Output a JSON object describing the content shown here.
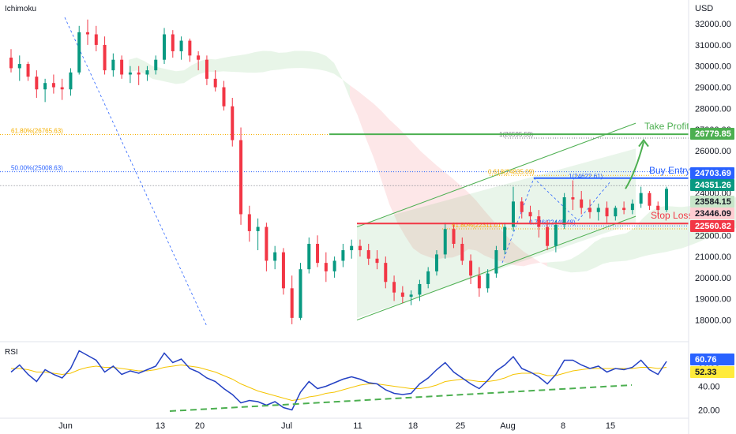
{
  "chart_data": {
    "type": "candlestick",
    "indicator_label": "Ichimoku",
    "currency": "USD",
    "price_axis": {
      "ticks": [
        "32000.00",
        "31000.00",
        "30000.00",
        "29000.00",
        "28000.00",
        "27000.00",
        "26000.00",
        "25000.00",
        "24000.00",
        "23000.00",
        "22000.00",
        "21000.00",
        "20000.00",
        "19000.00",
        "18000.00"
      ],
      "tick_values": [
        32000,
        31000,
        30000,
        29000,
        28000,
        27000,
        26000,
        25000,
        24000,
        23000,
        22000,
        21000,
        20000,
        19000,
        18000
      ],
      "range": [
        17200,
        32750
      ]
    },
    "time_axis": {
      "labels": [
        "Jun",
        "13",
        "20",
        "Jul",
        "11",
        "18",
        "25",
        "Aug",
        "8",
        "15"
      ],
      "label_index": [
        0,
        12,
        17,
        28,
        37,
        44,
        50,
        56,
        63,
        69
      ]
    },
    "price_badges": [
      {
        "value": "26779.85",
        "color": "#4caf50"
      },
      {
        "value": "24703.69",
        "color": "#2962ff"
      },
      {
        "value": "24351.26",
        "color": "#089981"
      },
      {
        "value": "23584.15",
        "color": "#c8e6c9"
      },
      {
        "value": "23446.09",
        "color": "#ffcdd2"
      },
      {
        "value": "22560.82",
        "color": "#f23645"
      }
    ],
    "annotations": {
      "take_profit": {
        "text": "Take Profit",
        "price": 26779.85,
        "color": "#4caf50"
      },
      "buy_entry": {
        "text": "Buy Entry",
        "price": 24703.69,
        "color": "#2962ff"
      },
      "stop_loss": {
        "text": "Stop Loss",
        "price": 22560.82,
        "color": "#f23645"
      }
    },
    "fib_labels": [
      {
        "text": "61.80%(26765.63)",
        "price": 26765.63,
        "color": "#f5b000"
      },
      {
        "text": "50.00%(25008.63)",
        "price": 25008.63,
        "color": "#2962ff"
      },
      {
        "text": "1(26595.59)",
        "price": 26595.59,
        "color": "#787b86"
      },
      {
        "text": "0.618(24835.09)",
        "price": 24835.09,
        "color": "#f5b000"
      },
      {
        "text": "1(24622.61)",
        "price": 24622.61,
        "color": "#2962ff"
      },
      {
        "text": "0.786(22448.48)",
        "price": 22448.48,
        "color": "#2962ff"
      },
      {
        "text": "61.80%(22311.01)",
        "price": 22311.01,
        "color": "#f5b000"
      }
    ],
    "candles": [
      [
        0,
        30400,
        30800,
        29700,
        29900
      ],
      [
        1,
        29900,
        30500,
        29300,
        30100
      ],
      [
        2,
        30100,
        30200,
        29300,
        29500
      ],
      [
        3,
        29500,
        29800,
        28500,
        28900
      ],
      [
        4,
        28900,
        29400,
        28300,
        29200
      ],
      [
        5,
        29200,
        29600,
        28700,
        29000
      ],
      [
        6,
        29000,
        29400,
        28400,
        28900
      ],
      [
        7,
        28900,
        29900,
        28600,
        29700
      ],
      [
        8,
        29700,
        31900,
        29600,
        31600
      ],
      [
        9,
        31600,
        32200,
        31000,
        31500
      ],
      [
        10,
        31500,
        31900,
        30700,
        31000
      ],
      [
        11,
        31000,
        31400,
        29600,
        29800
      ],
      [
        12,
        29800,
        30600,
        29500,
        30300
      ],
      [
        13,
        30300,
        30500,
        29400,
        29600
      ],
      [
        14,
        29600,
        30000,
        29200,
        29700
      ],
      [
        15,
        29700,
        30000,
        29100,
        29600
      ],
      [
        16,
        29600,
        30000,
        29300,
        29800
      ],
      [
        17,
        29800,
        30500,
        29600,
        30300
      ],
      [
        18,
        30300,
        31800,
        30100,
        31500
      ],
      [
        19,
        31500,
        31700,
        30400,
        30700
      ],
      [
        20,
        30700,
        31400,
        30300,
        31200
      ],
      [
        21,
        31200,
        31300,
        30200,
        30500
      ],
      [
        22,
        30500,
        30700,
        29800,
        30300
      ],
      [
        23,
        30300,
        30500,
        29100,
        29400
      ],
      [
        24,
        29400,
        29800,
        28800,
        29000
      ],
      [
        25,
        29000,
        29300,
        27900,
        28100
      ],
      [
        26,
        28100,
        28500,
        26200,
        26500
      ],
      [
        27,
        26500,
        27100,
        22500,
        23000
      ],
      [
        28,
        23000,
        23400,
        21700,
        22200
      ],
      [
        29,
        22200,
        22800,
        21300,
        22400
      ],
      [
        30,
        22400,
        22600,
        20300,
        20800
      ],
      [
        31,
        20800,
        21500,
        20400,
        21200
      ],
      [
        32,
        21200,
        21400,
        19200,
        19500
      ],
      [
        33,
        19500,
        20100,
        17800,
        18100
      ],
      [
        34,
        18100,
        20700,
        18000,
        20400
      ],
      [
        35,
        20400,
        21900,
        20200,
        21600
      ],
      [
        36,
        21600,
        22000,
        20500,
        20700
      ],
      [
        37,
        20700,
        21200,
        19800,
        20300
      ],
      [
        38,
        20300,
        21000,
        20000,
        20800
      ],
      [
        39,
        20800,
        21600,
        20500,
        21300
      ],
      [
        40,
        21300,
        21800,
        20900,
        21500
      ],
      [
        41,
        21500,
        21800,
        21000,
        21300
      ],
      [
        42,
        21300,
        21600,
        20600,
        20900
      ],
      [
        43,
        20900,
        21300,
        20400,
        20700
      ],
      [
        44,
        20700,
        21000,
        19500,
        19800
      ],
      [
        45,
        19800,
        20100,
        18900,
        19300
      ],
      [
        46,
        19300,
        19600,
        18800,
        19100
      ],
      [
        47,
        19100,
        19400,
        18700,
        19200
      ],
      [
        48,
        19200,
        19900,
        18900,
        19700
      ],
      [
        49,
        19700,
        20500,
        19500,
        20300
      ],
      [
        50,
        20300,
        21300,
        20100,
        21100
      ],
      [
        51,
        21100,
        22600,
        20900,
        22300
      ],
      [
        52,
        22300,
        22500,
        21400,
        21600
      ],
      [
        53,
        21600,
        21900,
        20600,
        20800
      ],
      [
        54,
        20800,
        21100,
        19700,
        20100
      ],
      [
        55,
        20100,
        20500,
        19100,
        19500
      ],
      [
        56,
        19500,
        20400,
        19300,
        20200
      ],
      [
        57,
        20200,
        21500,
        20000,
        21300
      ],
      [
        58,
        21300,
        22600,
        21100,
        22400
      ],
      [
        59,
        22400,
        24300,
        22200,
        23600
      ],
      [
        60,
        23600,
        23800,
        22800,
        23100
      ],
      [
        61,
        23100,
        23400,
        22600,
        22900
      ],
      [
        62,
        22900,
        23200,
        21900,
        22400
      ],
      [
        63,
        22400,
        22700,
        21300,
        21500
      ],
      [
        64,
        21500,
        22700,
        21200,
        22500
      ],
      [
        65,
        22500,
        24000,
        22300,
        23800
      ],
      [
        66,
        23800,
        24600,
        23200,
        23700
      ],
      [
        67,
        23700,
        24100,
        23000,
        23300
      ],
      [
        68,
        23300,
        23700,
        22800,
        23100
      ],
      [
        69,
        23100,
        23500,
        22700,
        23300
      ],
      [
        70,
        23300,
        23600,
        22600,
        22900
      ],
      [
        71,
        22900,
        23400,
        22700,
        23300
      ],
      [
        72,
        23300,
        23600,
        23000,
        23200
      ],
      [
        73,
        23200,
        23700,
        23000,
        23500
      ],
      [
        74,
        23500,
        24300,
        23300,
        24000
      ],
      [
        75,
        24000,
        24100,
        23200,
        23400
      ],
      [
        76,
        23400,
        23600,
        22900,
        23200
      ],
      [
        77,
        23200,
        24300,
        23100,
        24200
      ]
    ],
    "rsi": {
      "label": "RSI",
      "ticks": [
        "60.00",
        "40.00",
        "20.00"
      ],
      "tick_values": [
        60,
        40,
        20
      ],
      "range": [
        15,
        75
      ],
      "value_badges": [
        {
          "value": "60.76",
          "color": "#2962ff"
        },
        {
          "value": "52.33",
          "color": "#ffeb3b"
        }
      ],
      "values": [
        52,
        58,
        50,
        44,
        54,
        50,
        47,
        55,
        70,
        66,
        62,
        52,
        57,
        50,
        53,
        51,
        54,
        57,
        68,
        60,
        63,
        55,
        52,
        47,
        44,
        38,
        33,
        26,
        28,
        27,
        24,
        27,
        22,
        20,
        35,
        44,
        38,
        40,
        43,
        46,
        48,
        46,
        43,
        42,
        37,
        34,
        33,
        34,
        42,
        47,
        54,
        60,
        52,
        47,
        42,
        38,
        45,
        53,
        58,
        65,
        55,
        52,
        48,
        42,
        50,
        62,
        62,
        58,
        55,
        57,
        52,
        55,
        54,
        56,
        62,
        54,
        50,
        61
      ],
      "signal": [
        55,
        55,
        54,
        52,
        52,
        51,
        50,
        51,
        54,
        56,
        57,
        56,
        56,
        55,
        54,
        53,
        53,
        54,
        56,
        57,
        58,
        57,
        56,
        54,
        52,
        49,
        46,
        42,
        39,
        36,
        34,
        32,
        30,
        28,
        29,
        31,
        32,
        34,
        35,
        37,
        39,
        41,
        42,
        42,
        41,
        40,
        39,
        38,
        38,
        39,
        41,
        44,
        45,
        46,
        45,
        44,
        44,
        45,
        47,
        50,
        51,
        51,
        51,
        49,
        49,
        51,
        53,
        54,
        55,
        55,
        55,
        55,
        55,
        55,
        56,
        56,
        55,
        56
      ]
    }
  }
}
